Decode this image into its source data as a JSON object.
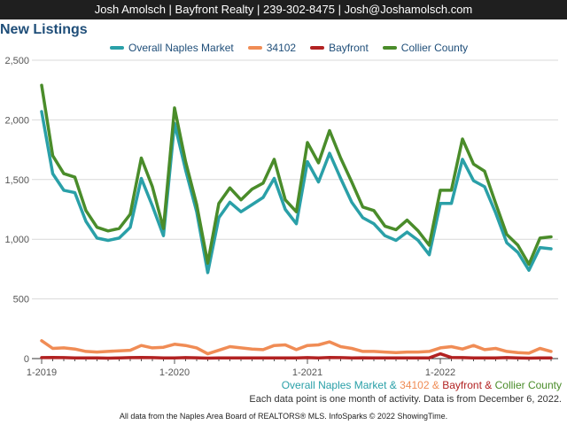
{
  "header": {
    "contact": "Josh Amolsch | Bayfront Realty | 239-302-8475 | Josh@Joshamolsch.com"
  },
  "chart_data": {
    "type": "line",
    "title": "New Listings",
    "x": [
      "2019-01",
      "2019-02",
      "2019-03",
      "2019-04",
      "2019-05",
      "2019-06",
      "2019-07",
      "2019-08",
      "2019-09",
      "2019-10",
      "2019-11",
      "2019-12",
      "2020-01",
      "2020-02",
      "2020-03",
      "2020-04",
      "2020-05",
      "2020-06",
      "2020-07",
      "2020-08",
      "2020-09",
      "2020-10",
      "2020-11",
      "2020-12",
      "2021-01",
      "2021-02",
      "2021-03",
      "2021-04",
      "2021-05",
      "2021-06",
      "2021-07",
      "2021-08",
      "2021-09",
      "2021-10",
      "2021-11",
      "2021-12",
      "2022-01",
      "2022-02",
      "2022-03",
      "2022-04",
      "2022-05",
      "2022-06",
      "2022-07",
      "2022-08",
      "2022-09",
      "2022-10",
      "2022-11"
    ],
    "x_tick_labels": [
      "1-2019",
      "1-2020",
      "1-2021",
      "1-2022"
    ],
    "x_tick_indices": [
      0,
      12,
      24,
      36
    ],
    "y_ticks": [
      0,
      500,
      1000,
      1500,
      2000,
      2500
    ],
    "y_tick_labels": [
      "0",
      "500",
      "1,000",
      "1,500",
      "2,000",
      "2,500"
    ],
    "ylim": [
      0,
      2500
    ],
    "grid": true,
    "legend_position": "top",
    "series": [
      {
        "name": "Overall Naples Market",
        "color": "#2aa0a8",
        "values": [
          2070,
          1550,
          1410,
          1390,
          1150,
          1010,
          990,
          1010,
          1100,
          1510,
          1280,
          1030,
          1970,
          1580,
          1230,
          720,
          1180,
          1310,
          1230,
          1290,
          1350,
          1510,
          1250,
          1130,
          1650,
          1480,
          1720,
          1510,
          1310,
          1180,
          1130,
          1030,
          990,
          1060,
          990,
          870,
          1300,
          1300,
          1670,
          1490,
          1440,
          1220,
          970,
          890,
          740,
          930,
          920
        ]
      },
      {
        "name": "34102",
        "color": "#f08c55",
        "values": [
          150,
          85,
          90,
          80,
          60,
          55,
          60,
          65,
          70,
          110,
          90,
          95,
          120,
          110,
          90,
          40,
          70,
          100,
          90,
          80,
          75,
          110,
          115,
          75,
          110,
          115,
          140,
          100,
          85,
          60,
          60,
          55,
          50,
          55,
          55,
          60,
          90,
          100,
          80,
          110,
          75,
          85,
          60,
          50,
          45,
          85,
          60
        ]
      },
      {
        "name": "Bayfront",
        "color": "#b22222",
        "values": [
          8,
          10,
          8,
          6,
          5,
          5,
          4,
          6,
          8,
          10,
          8,
          6,
          5,
          8,
          7,
          4,
          5,
          6,
          5,
          5,
          5,
          6,
          5,
          5,
          8,
          6,
          10,
          8,
          6,
          7,
          5,
          6,
          5,
          6,
          5,
          6,
          40,
          10,
          8,
          6,
          5,
          6,
          8,
          5,
          4,
          6,
          5
        ]
      },
      {
        "name": "Collier County",
        "color": "#4a8c2a",
        "values": [
          2290,
          1700,
          1550,
          1520,
          1240,
          1100,
          1070,
          1090,
          1210,
          1680,
          1440,
          1090,
          2100,
          1650,
          1290,
          800,
          1300,
          1430,
          1330,
          1420,
          1470,
          1670,
          1330,
          1230,
          1810,
          1640,
          1910,
          1680,
          1480,
          1270,
          1240,
          1110,
          1080,
          1160,
          1070,
          950,
          1410,
          1410,
          1840,
          1630,
          1570,
          1300,
          1040,
          950,
          790,
          1010,
          1020
        ]
      }
    ],
    "caption": {
      "names": [
        "Overall Naples Market",
        "34102",
        "Bayfront",
        "Collier County"
      ],
      "joiner": "&",
      "note": "Each data point is one month of activity. Data is from December 6, 2022."
    }
  },
  "footer": {
    "text": "All data from the Naples Area Board of REALTORS® MLS. InfoSparks © 2022 ShowingTime."
  }
}
